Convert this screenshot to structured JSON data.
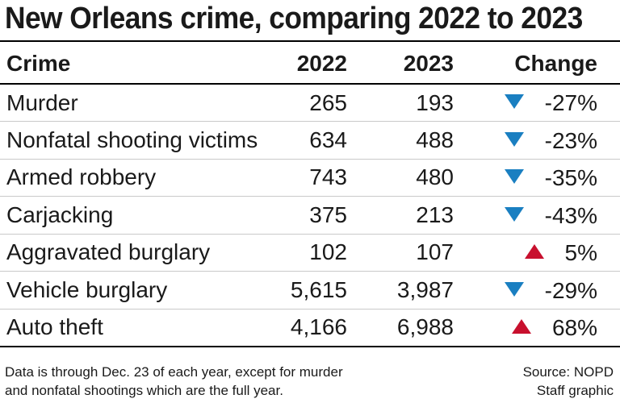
{
  "chart_data": {
    "type": "table",
    "title": "New Orleans crime, comparing 2022 to 2023",
    "columns": [
      "Crime",
      "2022",
      "2023",
      "Change"
    ],
    "rows": [
      {
        "crime": "Murder",
        "y2022": "265",
        "y2023": "193",
        "change": "-27%",
        "direction": "down"
      },
      {
        "crime": "Nonfatal shooting victims",
        "y2022": "634",
        "y2023": "488",
        "change": "-23%",
        "direction": "down"
      },
      {
        "crime": "Armed robbery",
        "y2022": "743",
        "y2023": "480",
        "change": "-35%",
        "direction": "down"
      },
      {
        "crime": "Carjacking",
        "y2022": "375",
        "y2023": "213",
        "change": "-43%",
        "direction": "down"
      },
      {
        "crime": "Aggravated burglary",
        "y2022": "102",
        "y2023": "107",
        "change": "5%",
        "direction": "up"
      },
      {
        "crime": "Vehicle burglary",
        "y2022": "5,615",
        "y2023": "3,987",
        "change": "-29%",
        "direction": "down"
      },
      {
        "crime": "Auto theft",
        "y2022": "4,166",
        "y2023": "6,988",
        "change": "68%",
        "direction": "up"
      }
    ],
    "footnote_line1": "Data is through Dec. 23 of each year, except for murder",
    "footnote_line2": "and nonfatal shootings which are the full year.",
    "source": "Source: NOPD",
    "credit": "Staff graphic",
    "colors": {
      "decrease": "#1a7fc1",
      "increase": "#c8102e"
    }
  }
}
